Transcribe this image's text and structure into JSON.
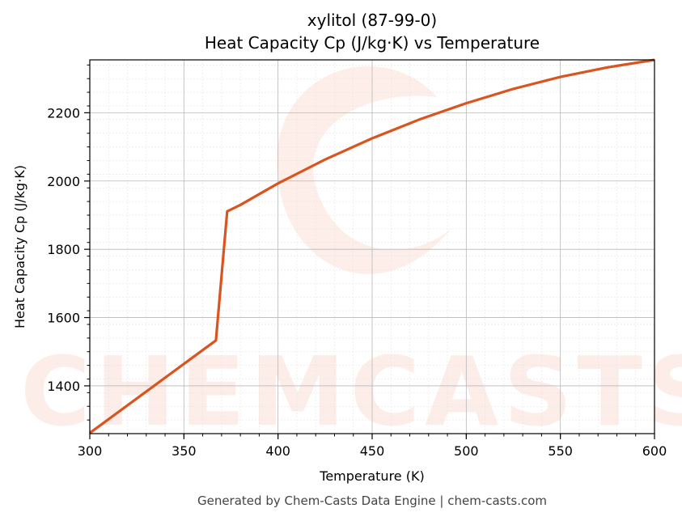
{
  "chart_data": {
    "type": "line",
    "title_line1": "xylitol (87-99-0)",
    "title_line2": "Heat Capacity Cp (J/kg·K) vs Temperature",
    "xlabel": "Temperature (K)",
    "ylabel": "Heat Capacity Cp (J/kg·K)",
    "xlim": [
      300,
      600
    ],
    "ylim": [
      1260,
      2355
    ],
    "xticks": [
      300,
      350,
      400,
      450,
      500,
      550,
      600
    ],
    "yticks": [
      1400,
      1600,
      1800,
      2000,
      2200
    ],
    "grid": true,
    "series": [
      {
        "color": "#d9541e",
        "x": [
          300,
          367,
          373,
          380,
          400,
          425,
          450,
          475,
          500,
          525,
          550,
          575,
          600
        ],
        "y": [
          1262,
          1533,
          1911,
          1930,
          1993,
          2063,
          2125,
          2180,
          2228,
          2270,
          2305,
          2333,
          2355
        ]
      }
    ]
  },
  "watermark": "CHEMCASTS",
  "footer": "Generated by Chem-Casts Data Engine | chem-casts.com"
}
